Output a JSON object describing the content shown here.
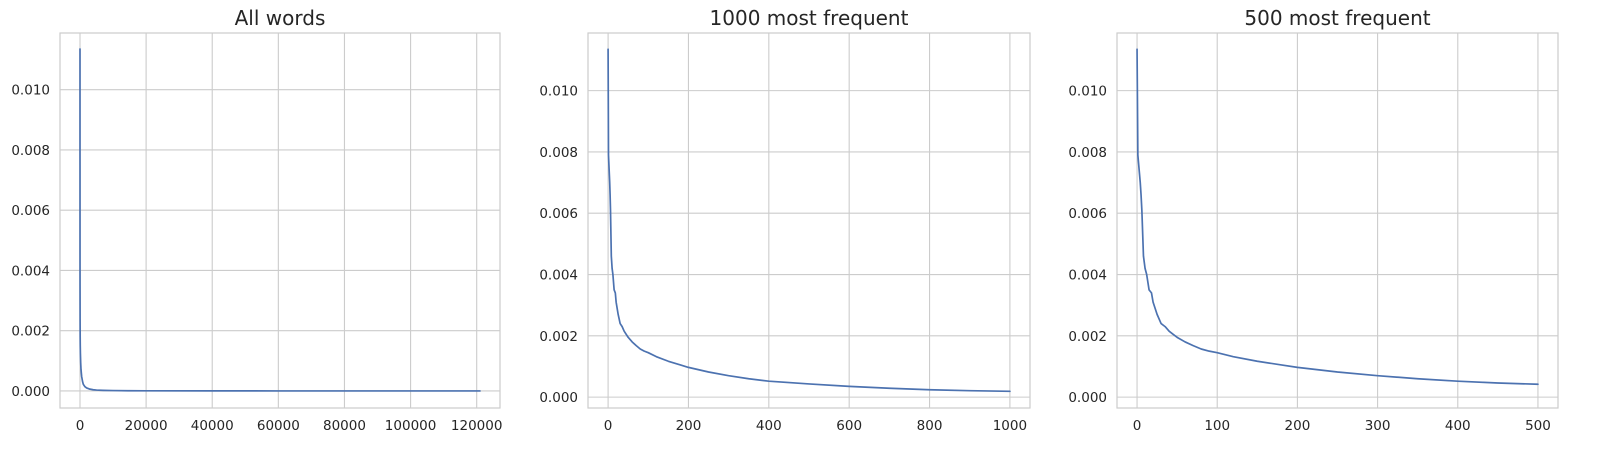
{
  "figure": {
    "background": "#ffffff",
    "grid_color": "#cccccc",
    "line_color": "#4c72b0",
    "text_color": "#262626"
  },
  "chart_data": [
    {
      "type": "line",
      "title": "All words",
      "xlabel": "",
      "ylabel": "",
      "grid": true,
      "xlim": [
        -6050,
        127050
      ],
      "ylim": [
        -0.000566,
        0.01188
      ],
      "xticks": [
        0,
        20000,
        40000,
        60000,
        80000,
        100000,
        120000
      ],
      "xtick_labels": [
        "0",
        "20000",
        "40000",
        "60000",
        "80000",
        "100000",
        "120000"
      ],
      "yticks": [
        0,
        0.002,
        0.004,
        0.006,
        0.008,
        0.01
      ],
      "ytick_labels": [
        "0.000",
        "0.002",
        "0.004",
        "0.006",
        "0.008",
        "0.010"
      ],
      "series": [
        {
          "x": [
            0,
            1,
            2,
            3,
            5,
            8,
            12,
            20,
            30,
            50,
            80,
            120,
            200,
            300,
            500,
            800,
            1000,
            1500,
            2000,
            3000,
            4000,
            5000,
            7000,
            10000,
            15000,
            20000,
            40000,
            60000,
            80000,
            100000,
            121000
          ],
          "y": [
            0.01135,
            0.0079,
            0.0075,
            0.0069,
            0.0046,
            0.004,
            0.0035,
            0.003,
            0.0024,
            0.0018,
            0.0015,
            0.00125,
            0.00095,
            0.00072,
            0.00048,
            0.0003,
            0.00022,
            0.00014,
            0.0001,
            6e-05,
            4e-05,
            3e-05,
            2e-05,
            1.2e-05,
            6e-06,
            4e-06,
            2e-06,
            1e-06,
            1e-06,
            5e-07,
            2e-07
          ]
        }
      ]
    },
    {
      "type": "line",
      "title": "1000 most frequent",
      "xlabel": "",
      "ylabel": "",
      "grid": true,
      "xlim": [
        -50,
        1050
      ],
      "ylim": [
        -0.000355,
        0.01188
      ],
      "xticks": [
        0,
        200,
        400,
        600,
        800,
        1000
      ],
      "xtick_labels": [
        "0",
        "200",
        "400",
        "600",
        "800",
        "1000"
      ],
      "yticks": [
        0,
        0.002,
        0.004,
        0.006,
        0.008,
        0.01
      ],
      "ytick_labels": [
        "0.000",
        "0.002",
        "0.004",
        "0.006",
        "0.008",
        "0.010"
      ],
      "series": [
        {
          "x": [
            0,
            1,
            2,
            3,
            4,
            5,
            6,
            8,
            10,
            12,
            15,
            18,
            20,
            25,
            30,
            35,
            40,
            50,
            60,
            70,
            80,
            90,
            100,
            120,
            150,
            180,
            200,
            250,
            300,
            350,
            400,
            500,
            600,
            700,
            800,
            900,
            1000
          ],
          "y": [
            0.01135,
            0.0079,
            0.0076,
            0.0073,
            0.007,
            0.0066,
            0.0061,
            0.0046,
            0.0042,
            0.004,
            0.0035,
            0.0034,
            0.0031,
            0.0027,
            0.0024,
            0.0023,
            0.00215,
            0.00195,
            0.0018,
            0.00168,
            0.00157,
            0.0015,
            0.00145,
            0.00132,
            0.00117,
            0.00105,
            0.00097,
            0.00082,
            0.0007,
            0.0006,
            0.00052,
            0.00043,
            0.00035,
            0.00029,
            0.00024,
            0.00021,
            0.00019
          ]
        }
      ]
    },
    {
      "type": "line",
      "title": "500 most frequent",
      "xlabel": "",
      "ylabel": "",
      "grid": true,
      "xlim": [
        -25,
        525
      ],
      "ylim": [
        -0.000355,
        0.01188
      ],
      "xticks": [
        0,
        100,
        200,
        300,
        400,
        500
      ],
      "xtick_labels": [
        "0",
        "100",
        "200",
        "300",
        "400",
        "500"
      ],
      "yticks": [
        0,
        0.002,
        0.004,
        0.006,
        0.008,
        0.01
      ],
      "ytick_labels": [
        "0.000",
        "0.002",
        "0.004",
        "0.006",
        "0.008",
        "0.010"
      ],
      "series": [
        {
          "x": [
            0,
            1,
            2,
            3,
            4,
            5,
            6,
            8,
            10,
            12,
            15,
            18,
            20,
            25,
            30,
            35,
            40,
            45,
            50,
            60,
            70,
            80,
            90,
            100,
            120,
            150,
            180,
            200,
            250,
            300,
            350,
            400,
            450,
            500
          ],
          "y": [
            0.01135,
            0.0079,
            0.0076,
            0.0073,
            0.007,
            0.0066,
            0.0061,
            0.0046,
            0.0042,
            0.004,
            0.0035,
            0.0034,
            0.0031,
            0.0027,
            0.0024,
            0.0023,
            0.00215,
            0.00205,
            0.00195,
            0.0018,
            0.00168,
            0.00157,
            0.0015,
            0.00145,
            0.00132,
            0.00117,
            0.00105,
            0.00097,
            0.00082,
            0.0007,
            0.0006,
            0.00052,
            0.00046,
            0.00042
          ]
        }
      ]
    }
  ]
}
